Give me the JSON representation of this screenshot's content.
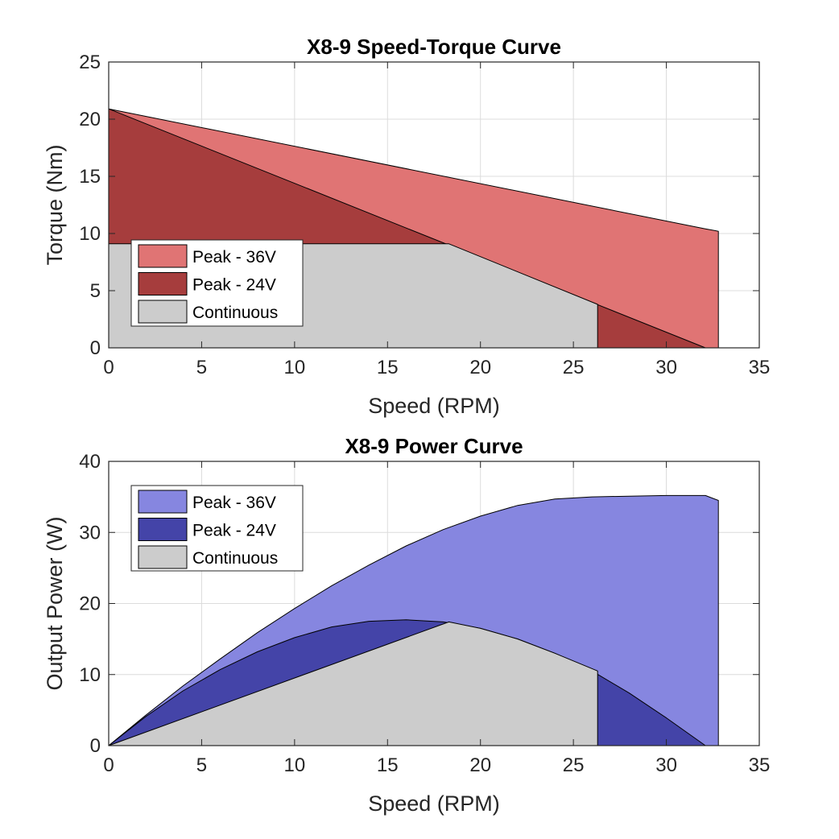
{
  "colors": {
    "peak36_torque": "#e07474",
    "peak24_torque": "#a63d3d",
    "peak36_power": "#8686e0",
    "peak24_power": "#4444a8",
    "continuous": "#cccccc",
    "background": "#ffffff",
    "grid": "#dcdcdc"
  },
  "chart_data": [
    {
      "type": "area",
      "title": "X8-9 Speed-Torque Curve",
      "xlabel": "Speed (RPM)",
      "ylabel": "Torque (Nm)",
      "xlim": [
        0,
        35
      ],
      "ylim": [
        0,
        25
      ],
      "xticks": [
        0,
        5,
        10,
        15,
        20,
        25,
        30,
        35
      ],
      "yticks": [
        0,
        5,
        10,
        15,
        20,
        25
      ],
      "grid": true,
      "legend_position": "lower-left",
      "series": [
        {
          "name": "Peak - 36V",
          "color_key": "peak36_torque",
          "points": [
            [
              0,
              0
            ],
            [
              0,
              20.9
            ],
            [
              32.1,
              10.4
            ],
            [
              32.8,
              10.2
            ],
            [
              32.8,
              0
            ]
          ]
        },
        {
          "name": "Peak - 24V",
          "color_key": "peak24_torque",
          "points": [
            [
              0,
              0
            ],
            [
              0,
              20.9
            ],
            [
              32.1,
              0
            ]
          ]
        },
        {
          "name": "Continuous",
          "color_key": "continuous",
          "points": [
            [
              0,
              0
            ],
            [
              0,
              9.1
            ],
            [
              18.3,
              9.1
            ],
            [
              26.3,
              3.8
            ],
            [
              26.3,
              0
            ]
          ]
        }
      ]
    },
    {
      "type": "area",
      "title": "X8-9 Power Curve",
      "xlabel": "Speed (RPM)",
      "ylabel": "Output Power (W)",
      "xlim": [
        0,
        35
      ],
      "ylim": [
        0,
        40
      ],
      "xticks": [
        0,
        5,
        10,
        15,
        20,
        25,
        30,
        35
      ],
      "yticks": [
        0,
        10,
        20,
        30,
        40
      ],
      "grid": true,
      "legend_position": "upper-left",
      "series": [
        {
          "name": "Peak - 36V",
          "color_key": "peak36_power",
          "points": [
            [
              0,
              0
            ],
            [
              2,
              4.3
            ],
            [
              4,
              8.4
            ],
            [
              6,
              12.2
            ],
            [
              8,
              15.9
            ],
            [
              10,
              19.3
            ],
            [
              12,
              22.5
            ],
            [
              14,
              25.4
            ],
            [
              16,
              28.1
            ],
            [
              18,
              30.4
            ],
            [
              20,
              32.3
            ],
            [
              22,
              33.8
            ],
            [
              24,
              34.7
            ],
            [
              26,
              35.0
            ],
            [
              28,
              35.1
            ],
            [
              30,
              35.2
            ],
            [
              32.1,
              35.2
            ],
            [
              32.8,
              34.5
            ],
            [
              32.8,
              0
            ]
          ]
        },
        {
          "name": "Peak - 24V",
          "color_key": "peak24_power",
          "points": [
            [
              0,
              0
            ],
            [
              2,
              4.1
            ],
            [
              4,
              7.7
            ],
            [
              6,
              10.7
            ],
            [
              8,
              13.2
            ],
            [
              10,
              15.2
            ],
            [
              12,
              16.7
            ],
            [
              14,
              17.5
            ],
            [
              16,
              17.7
            ],
            [
              18,
              17.4
            ],
            [
              20,
              16.5
            ],
            [
              22,
              15.0
            ],
            [
              24,
              13.0
            ],
            [
              26,
              10.5
            ],
            [
              28,
              7.4
            ],
            [
              30,
              3.9
            ],
            [
              32.1,
              0
            ]
          ]
        },
        {
          "name": "Continuous",
          "color_key": "continuous",
          "points": [
            [
              0,
              0
            ],
            [
              18.3,
              17.4
            ],
            [
              20,
              16.5
            ],
            [
              22,
              15.0
            ],
            [
              24,
              13.0
            ],
            [
              26.3,
              10.5
            ],
            [
              26.3,
              0
            ]
          ]
        }
      ]
    }
  ]
}
